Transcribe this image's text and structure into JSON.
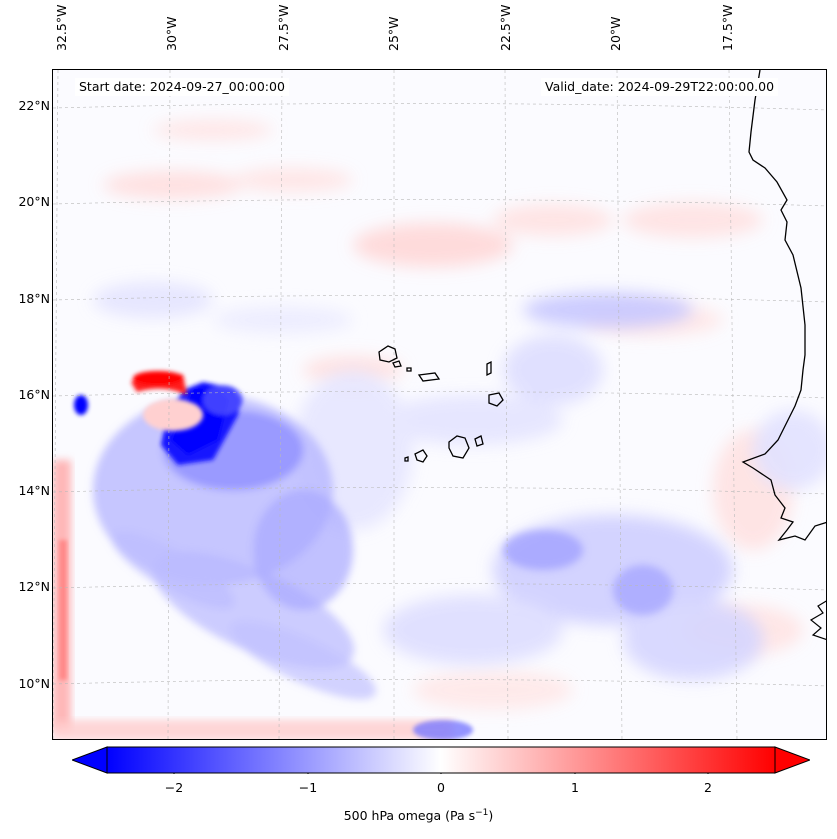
{
  "header": {
    "start_date": "Start date: 2024-09-27_00:00:00",
    "valid_date": "Valid_date: 2024-09-29T22:00:00.00"
  },
  "axes": {
    "longitude_labels": [
      "32.5°W",
      "30°W",
      "27.5°W",
      "25°W",
      "22.5°W",
      "20°W",
      "17.5°W"
    ],
    "latitude_labels": [
      "22°N",
      "20°N",
      "18°N",
      "16°N",
      "14°N",
      "12°N",
      "10°N"
    ]
  },
  "colorbar": {
    "ticks": [
      "−2",
      "−1",
      "0",
      "1",
      "2"
    ],
    "label_main": "500 hPa omega (Pa s",
    "label_sup": "−1",
    "label_close": ")",
    "range": [
      -2.5,
      2.5
    ],
    "negative_color": "#0000ff",
    "positive_color": "#ff0000",
    "extend": "both"
  },
  "map": {
    "projection": "Lambert conformal",
    "gridlines": true,
    "coastline_color": "#000000",
    "field": "500 hPa omega",
    "features": [
      {
        "name": "strong-ascent-core",
        "sign": "negative",
        "intensity": "strong"
      },
      {
        "name": "strong-descent-arc",
        "sign": "positive",
        "intensity": "strong"
      },
      {
        "name": "west-edge-descent-band",
        "sign": "positive",
        "intensity": "moderate"
      },
      {
        "name": "south-edge-descent-band",
        "sign": "positive",
        "intensity": "moderate"
      }
    ]
  }
}
